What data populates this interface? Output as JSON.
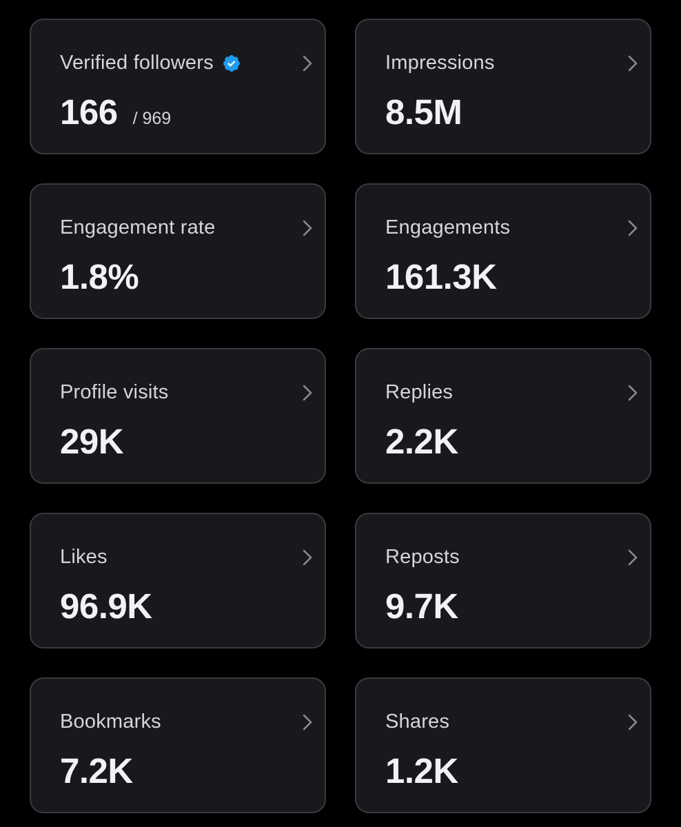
{
  "colors": {
    "background": "#000000",
    "card_background": "#18181d",
    "card_border": "#3a3a40",
    "label_text": "#d6d6da",
    "value_text": "#f2f2f4",
    "verified_badge": "#1d9bf0",
    "chevron": "#8b8b92"
  },
  "metrics": [
    {
      "label": "Verified followers",
      "value": "166",
      "subvalue": "/ 969",
      "icon": "verified-badge-icon"
    },
    {
      "label": "Impressions",
      "value": "8.5M"
    },
    {
      "label": "Engagement rate",
      "value": "1.8%"
    },
    {
      "label": "Engagements",
      "value": "161.3K"
    },
    {
      "label": "Profile visits",
      "value": "29K"
    },
    {
      "label": "Replies",
      "value": "2.2K"
    },
    {
      "label": "Likes",
      "value": "96.9K"
    },
    {
      "label": "Reposts",
      "value": "9.7K"
    },
    {
      "label": "Bookmarks",
      "value": "7.2K"
    },
    {
      "label": "Shares",
      "value": "1.2K"
    }
  ]
}
